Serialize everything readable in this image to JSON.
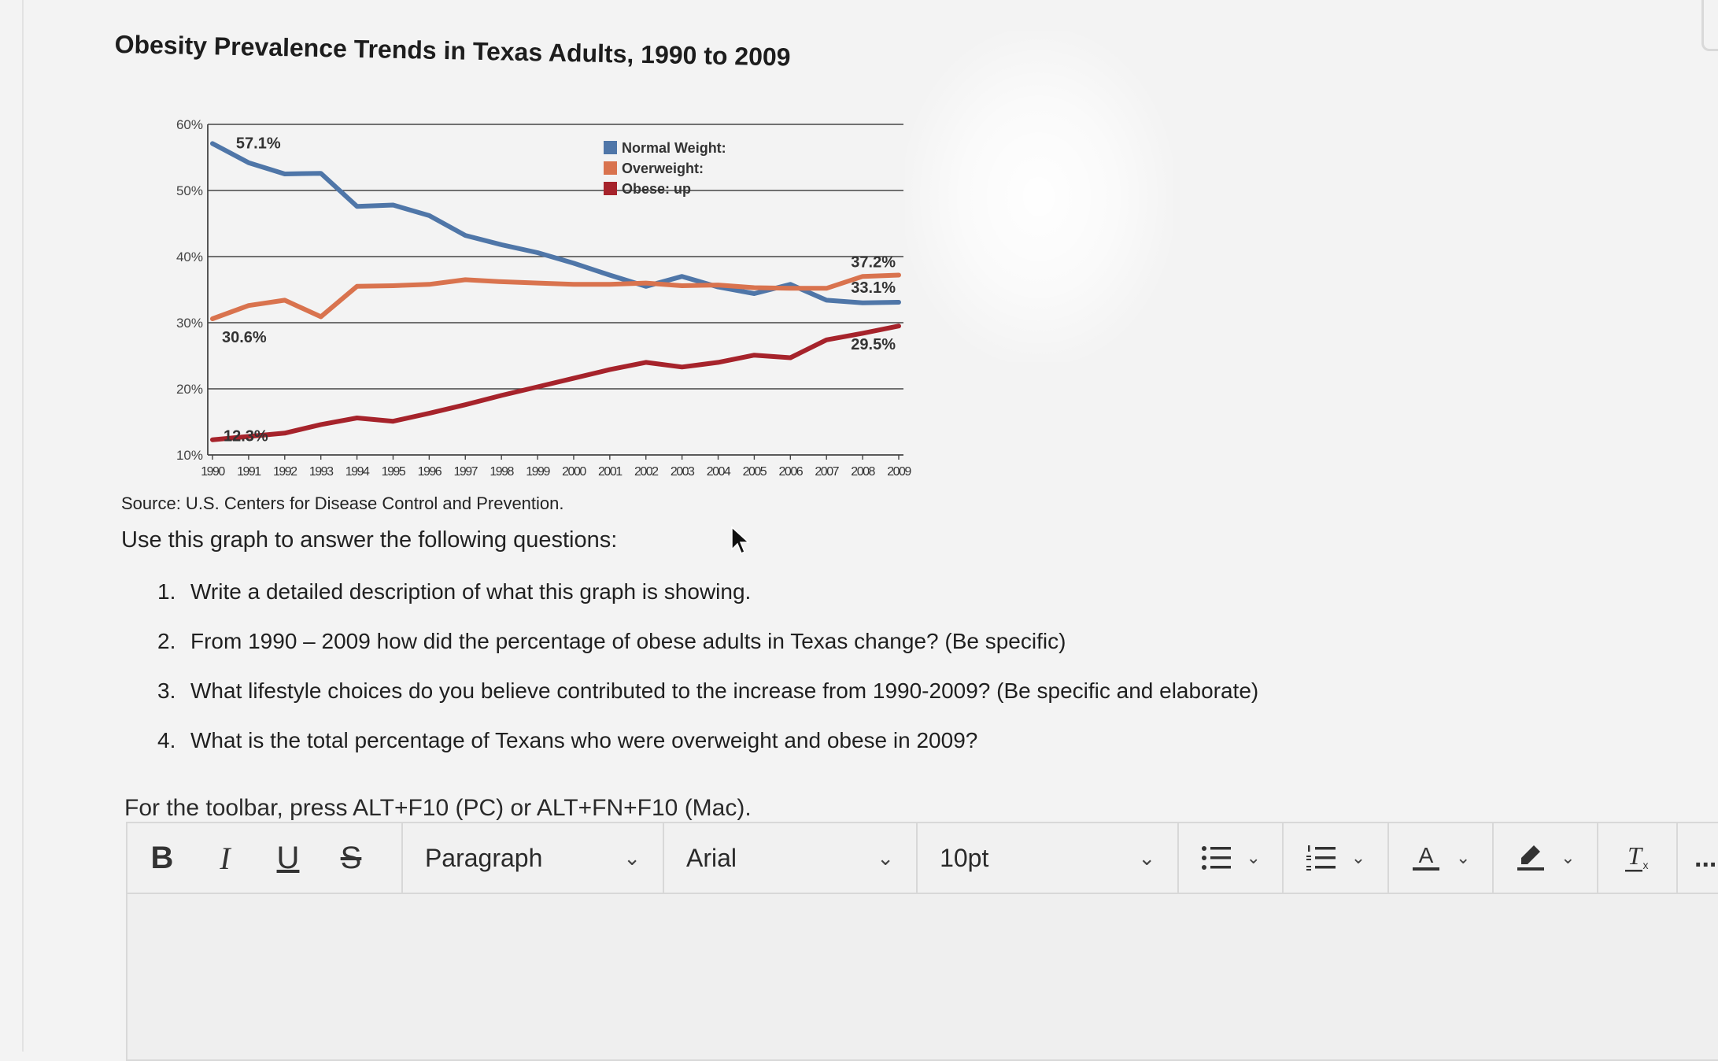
{
  "title": "Obesity Prevalence Trends in Texas Adults, 1990 to 2009",
  "chart_data": {
    "type": "line",
    "x": [
      "1990",
      "1991",
      "1992",
      "1993",
      "1994",
      "1995",
      "1996",
      "1997",
      "1998",
      "1999",
      "2000",
      "2001",
      "2002",
      "2003",
      "2004",
      "2005",
      "2006",
      "2007",
      "2008",
      "2009"
    ],
    "series": [
      {
        "name": "Normal Weight:",
        "color": "#4f76a8",
        "values": [
          57.1,
          54.2,
          52.5,
          52.6,
          47.6,
          47.8,
          46.2,
          43.2,
          41.8,
          40.6,
          39.0,
          37.2,
          35.5,
          37.0,
          35.4,
          34.4,
          35.8,
          33.4,
          33.0,
          33.1
        ]
      },
      {
        "name": "Overweight:",
        "color": "#d9734e",
        "values": [
          30.6,
          32.6,
          33.4,
          30.9,
          35.5,
          35.6,
          35.8,
          36.5,
          36.2,
          36.0,
          35.8,
          35.8,
          36.0,
          35.6,
          35.7,
          35.3,
          35.2,
          35.2,
          37.0,
          37.2
        ]
      },
      {
        "name": "Obese: up",
        "color": "#a6232b",
        "values": [
          12.3,
          12.8,
          13.3,
          14.6,
          15.6,
          15.1,
          16.3,
          17.6,
          19.0,
          20.3,
          21.6,
          22.9,
          24.0,
          23.3,
          24.0,
          25.1,
          24.7,
          27.4,
          28.4,
          29.5
        ]
      }
    ],
    "annotations": [
      "57.1%",
      "30.6%",
      "12.3%",
      "37.2%",
      "33.1%",
      "29.5%"
    ],
    "ylim": [
      10,
      60
    ],
    "yticks": [
      "10%",
      "20%",
      "30%",
      "40%",
      "50%",
      "60%"
    ],
    "grid": "horizontal",
    "legend": "top-right",
    "xlabel": "",
    "ylabel": ""
  },
  "source": "Source: U.S. Centers for Disease Control and Prevention.",
  "instructions": "Use this graph to answer the following questions:",
  "questions": [
    {
      "num": "1.",
      "text": "Write a detailed description of what this graph is showing."
    },
    {
      "num": "2.",
      "text": "From 1990 – 2009 how did the percentage of obese adults in Texas change? (Be specific)"
    },
    {
      "num": "3.",
      "text": "What lifestyle choices do you believe contributed to the increase from 1990-2009? (Be specific and elaborate)"
    },
    {
      "num": "4.",
      "text": "What is the total percentage of Texans who were overweight and obese in 2009?"
    }
  ],
  "toolbar_hint": "For the toolbar, press ALT+F10 (PC) or ALT+FN+F10 (Mac).",
  "toolbar": {
    "bold": "B",
    "italic": "I",
    "underline": "U",
    "strike": "S",
    "block_format": "Paragraph",
    "font_family": "Arial",
    "font_size": "10pt",
    "more": "..."
  }
}
